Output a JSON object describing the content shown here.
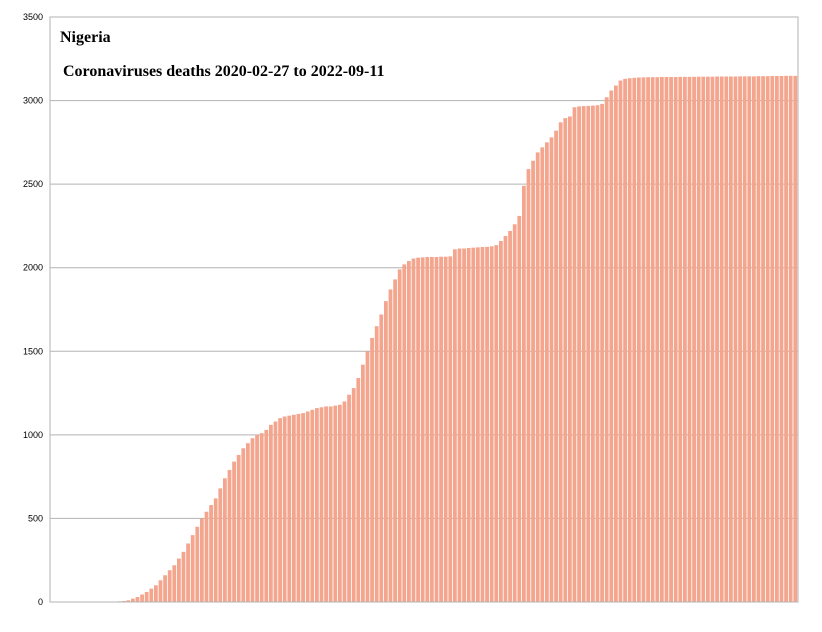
{
  "chart_data": {
    "type": "bar",
    "title": "Nigeria",
    "subtitle": "Coronaviruses deaths 2020-02-27 to 2022-09-11",
    "xlabel": "",
    "ylabel": "",
    "x_range": [
      "2020-02-27",
      "2022-09-11"
    ],
    "ylim": [
      0,
      3500
    ],
    "yticks": [
      "0",
      "500",
      "1000",
      "1500",
      "2000",
      "2500",
      "3000",
      "3500"
    ],
    "grid": true,
    "legend": "none",
    "bar_color": "#f4a58e",
    "bar_gap_color": "#fce7df",
    "series": [
      {
        "values": [
          0,
          0,
          0,
          0,
          0,
          0,
          0,
          0,
          0,
          0,
          1,
          2,
          4,
          6,
          10,
          20,
          30,
          45,
          60,
          80,
          100,
          130,
          160,
          190,
          220,
          260,
          300,
          350,
          400,
          450,
          500,
          540,
          580,
          620,
          680,
          740,
          790,
          840,
          880,
          920,
          950,
          980,
          1000,
          1010,
          1030,
          1060,
          1080,
          1100,
          1110,
          1115,
          1120,
          1125,
          1130,
          1140,
          1150,
          1160,
          1165,
          1170,
          1170,
          1175,
          1180,
          1200,
          1240,
          1280,
          1340,
          1420,
          1500,
          1580,
          1650,
          1720,
          1800,
          1870,
          1930,
          1990,
          2020,
          2040,
          2055,
          2060,
          2062,
          2064,
          2064,
          2064,
          2066,
          2066,
          2068,
          2110,
          2115,
          2115,
          2118,
          2120,
          2122,
          2124,
          2125,
          2128,
          2135,
          2160,
          2190,
          2220,
          2260,
          2310,
          2490,
          2590,
          2640,
          2690,
          2720,
          2750,
          2780,
          2820,
          2870,
          2895,
          2905,
          2960,
          2965,
          2967,
          2968,
          2970,
          2972,
          2980,
          3020,
          3060,
          3090,
          3120,
          3130,
          3134,
          3136,
          3138,
          3139,
          3140,
          3140,
          3140,
          3141,
          3141,
          3141,
          3141,
          3142,
          3142,
          3142,
          3142,
          3143,
          3143,
          3143,
          3143,
          3144,
          3144,
          3144,
          3144,
          3144,
          3145,
          3145,
          3145,
          3145,
          3146,
          3146,
          3146,
          3147,
          3147,
          3147,
          3148,
          3148,
          3148
        ]
      }
    ]
  }
}
